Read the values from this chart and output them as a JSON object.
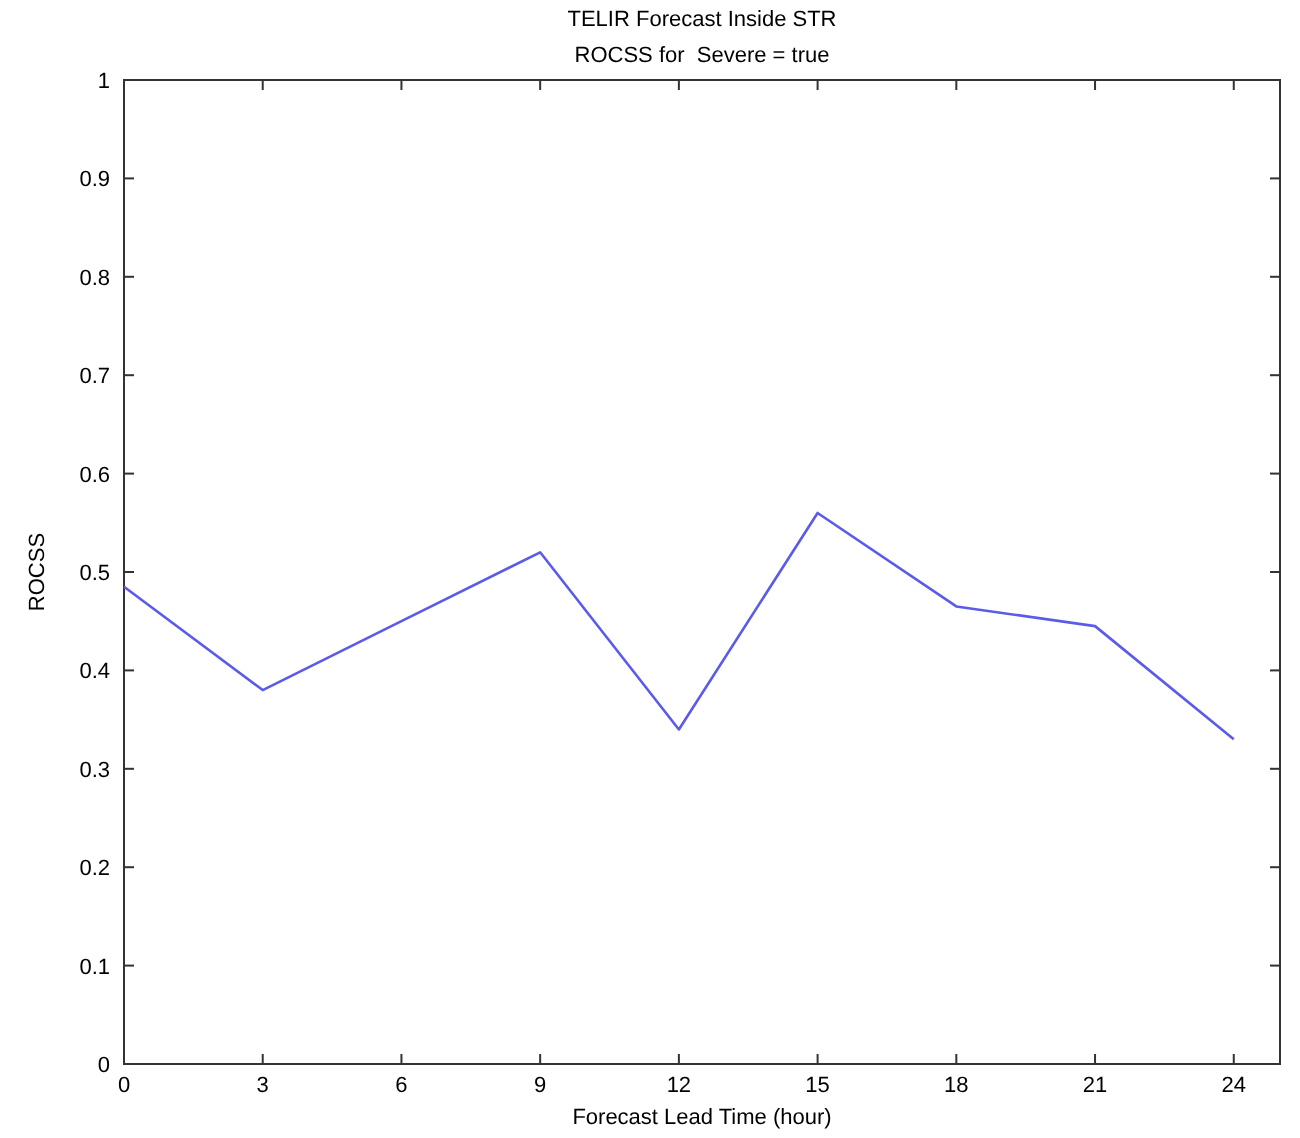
{
  "chart_data": {
    "type": "line",
    "title": "TELIR Forecast Inside STR",
    "subtitle": "ROCSS for  Severe = true",
    "xlabel": "Forecast Lead Time (hour)",
    "ylabel": "ROCSS",
    "x": [
      0,
      3,
      6,
      9,
      12,
      15,
      18,
      21,
      24
    ],
    "series": [
      {
        "color": "#5b5be8",
        "values": [
          0.485,
          0.38,
          0.45,
          0.52,
          0.34,
          0.56,
          0.465,
          0.445,
          0.33
        ]
      }
    ],
    "xlim": [
      0,
      25
    ],
    "xticks": [
      0,
      3,
      6,
      9,
      12,
      15,
      18,
      21,
      24
    ],
    "ylim": [
      0,
      1
    ],
    "yticks": [
      0,
      0.1,
      0.2,
      0.3,
      0.4,
      0.5,
      0.6,
      0.7,
      0.8,
      0.9,
      1
    ],
    "grid": false,
    "marker": "none",
    "line_style": "solid"
  }
}
